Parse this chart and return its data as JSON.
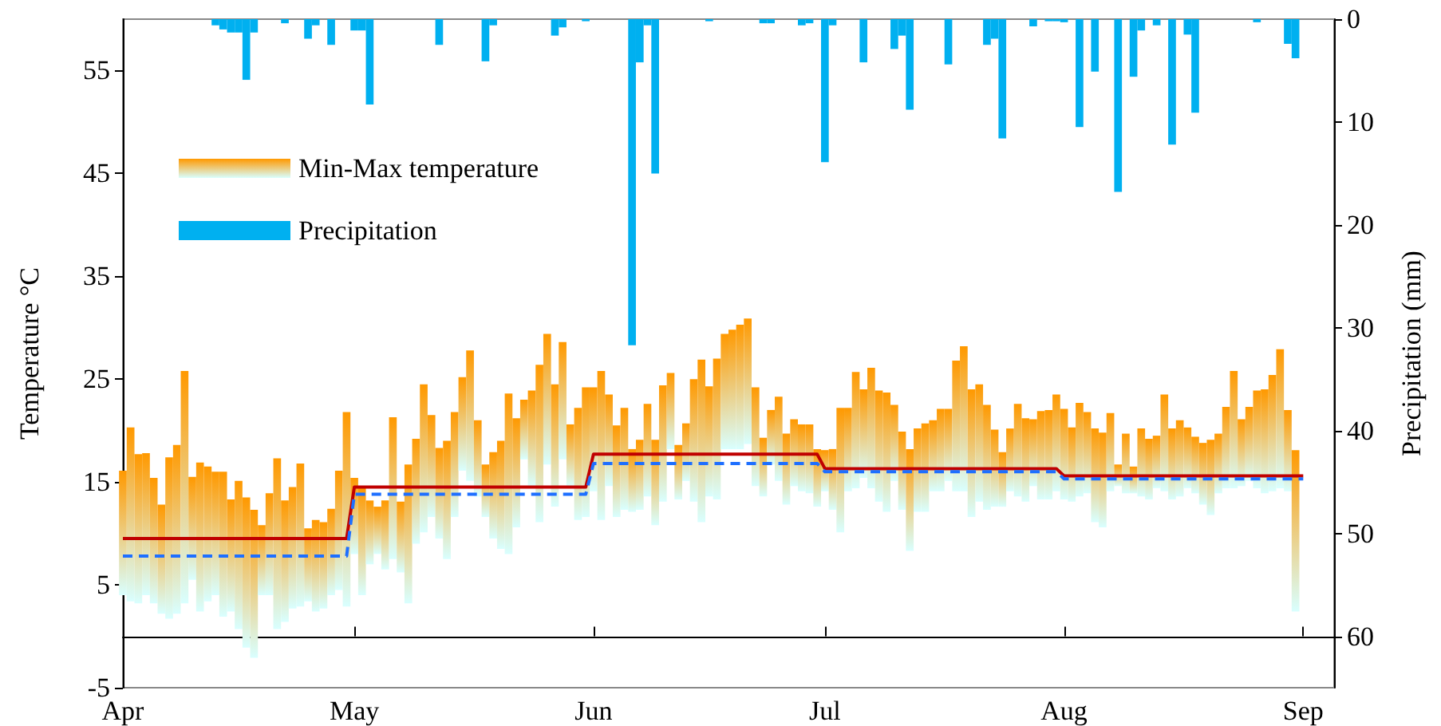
{
  "chart_data": {
    "type": "bar",
    "xlabel": null,
    "ylabel": "Temperature °C",
    "y2label": "Precipitation (mm)",
    "x": [
      "--04-01",
      "--04-02",
      "--04-03",
      "--04-04",
      "--04-05",
      "--04-06",
      "--04-07",
      "--04-08",
      "--04-09",
      "--04-10",
      "--04-11",
      "--04-12",
      "--04-13",
      "--04-14",
      "--04-15",
      "--04-16",
      "--04-17",
      "--04-18",
      "--04-19",
      "--04-20",
      "--04-21",
      "--04-22",
      "--04-23",
      "--04-24",
      "--04-25",
      "--04-26",
      "--04-27",
      "--04-28",
      "--04-29",
      "--04-30",
      "--05-01",
      "--05-02",
      "--05-03",
      "--05-04",
      "--05-05",
      "--05-06",
      "--05-07",
      "--05-08",
      "--05-09",
      "--05-10",
      "--05-11",
      "--05-12",
      "--05-13",
      "--05-14",
      "--05-15",
      "--05-16",
      "--05-17",
      "--05-18",
      "--05-19",
      "--05-20",
      "--05-21",
      "--05-22",
      "--05-23",
      "--05-24",
      "--05-25",
      "--05-26",
      "--05-27",
      "--05-28",
      "--05-29",
      "--05-30",
      "--05-31",
      "--06-01",
      "--06-02",
      "--06-03",
      "--06-04",
      "--06-05",
      "--06-06",
      "--06-07",
      "--06-08",
      "--06-09",
      "--06-10",
      "--06-11",
      "--06-12",
      "--06-13",
      "--06-14",
      "--06-15",
      "--06-16",
      "--06-17",
      "--06-18",
      "--06-19",
      "--06-20",
      "--06-21",
      "--06-22",
      "--06-23",
      "--06-24",
      "--06-25",
      "--06-26",
      "--06-27",
      "--06-28",
      "--06-29",
      "--06-30",
      "--07-01",
      "--07-02",
      "--07-03",
      "--07-04",
      "--07-05",
      "--07-06",
      "--07-07",
      "--07-08",
      "--07-09",
      "--07-10",
      "--07-11",
      "--07-12",
      "--07-13",
      "--07-14",
      "--07-15",
      "--07-16",
      "--07-17",
      "--07-18",
      "--07-19",
      "--07-20",
      "--07-21",
      "--07-22",
      "--07-23",
      "--07-24",
      "--07-25",
      "--07-26",
      "--07-27",
      "--07-28",
      "--07-29",
      "--07-30",
      "--07-31",
      "--08-01",
      "--08-02",
      "--08-03",
      "--08-04",
      "--08-05",
      "--08-06",
      "--08-07",
      "--08-08",
      "--08-09",
      "--08-10",
      "--08-11",
      "--08-12",
      "--08-13",
      "--08-14",
      "--08-15",
      "--08-16",
      "--08-17",
      "--08-18",
      "--08-19",
      "--08-20",
      "--08-21",
      "--08-22",
      "--08-23",
      "--08-24",
      "--08-25",
      "--08-26",
      "--08-27",
      "--08-28",
      "--08-29",
      "--08-30",
      "--08-31"
    ],
    "series": [
      {
        "name": "Min-Max temperature",
        "color": "#ff9900",
        "base": [
          4.0,
          3.4,
          3.2,
          4.0,
          3.2,
          2.2,
          1.7,
          2.2,
          3.2,
          5.5,
          2.4,
          3.4,
          4.0,
          1.9,
          2.4,
          0.7,
          -1.1,
          -2.1,
          4.0,
          4.0,
          0.7,
          1.4,
          2.7,
          2.9,
          3.4,
          2.4,
          2.7,
          4.0,
          4.5,
          2.9,
          8.0,
          4.0,
          7.0,
          8.0,
          6.5,
          7.5,
          6.2,
          3.2,
          9.0,
          10.1,
          11.6,
          9.5,
          7.5,
          11.6,
          16.1,
          15.1,
          13.6,
          11.6,
          9.5,
          8.5,
          8.0,
          10.6,
          17.2,
          14.6,
          11.1,
          16.7,
          12.6,
          17.2,
          14.6,
          11.3,
          11.6,
          14.1,
          11.3,
          14.6,
          11.6,
          12.3,
          12.1,
          12.3,
          13.6,
          10.8,
          13.1,
          18.2,
          13.3,
          15.1,
          13.1,
          11.1,
          13.6,
          13.3,
          18.2,
          18.2,
          18.2,
          18.7,
          14.6,
          13.6,
          16.7,
          15.1,
          12.8,
          14.6,
          14.1,
          13.9,
          12.6,
          14.1,
          12.3,
          10.1,
          14.1,
          14.4,
          15.4,
          14.4,
          13.1,
          12.1,
          15.1,
          12.3,
          8.3,
          12.1,
          12.1,
          14.1,
          14.1,
          15.1,
          14.1,
          14.1,
          11.6,
          13.1,
          12.3,
          12.6,
          12.6,
          14.1,
          13.6,
          13.1,
          14.6,
          13.3,
          13.3,
          14.1,
          13.3,
          13.1,
          13.6,
          13.9,
          11.1,
          10.6,
          14.1,
          14.6,
          13.9,
          13.9,
          13.6,
          13.3,
          14.4,
          14.1,
          13.3,
          13.6,
          14.4,
          13.9,
          12.8,
          11.8,
          13.9,
          14.4,
          14.4,
          14.6,
          15.1,
          14.4,
          13.9,
          14.1,
          14.4,
          14.1,
          2.4
        ],
        "values": [
          12.1,
          16.9,
          14.5,
          13.8,
          12.2,
          10.6,
          15.7,
          16.4,
          22.6,
          10.0,
          14.5,
          13.1,
          12.0,
          14.1,
          10.9,
          14.4,
          14.6,
          14.4,
          6.8,
          9.9,
          16.6,
          11.8,
          11.8,
          13.9,
          7.1,
          8.9,
          8.4,
          8.4,
          11.6,
          18.9,
          7.4,
          10.4,
          6.2,
          4.6,
          6.7,
          13.8,
          6.9,
          13.5,
          10.2,
          14.4,
          9.9,
          8.8,
          11.5,
          10.2,
          9.1,
          12.7,
          7.4,
          5.1,
          8.4,
          10.5,
          15.6,
          10.6,
          5.8,
          9.3,
          15.3,
          12.7,
          11.9,
          11.4,
          6.0,
          10.9,
          12.6,
          10.1,
          14.5,
          8.9,
          8.9,
          9.9,
          6.1,
          6.8,
          9.0,
          8.3,
          11.3,
          7.4,
          5.3,
          5.6,
          11.9,
          15.8,
          10.7,
          13.7,
          11.2,
          11.6,
          12.1,
          12.2,
          9.6,
          5.7,
          5.3,
          8.2,
          6.9,
          6.5,
          6.5,
          6.7,
          5.6,
          4.0,
          5.9,
          12.1,
          8.1,
          11.3,
          8.6,
          11.7,
          10.8,
          11.6,
          7.4,
          7.6,
          9.9,
          8.1,
          8.6,
          6.9,
          8.0,
          7.0,
          12.7,
          14.1,
          12.4,
          11.4,
          10.2,
          7.5,
          5.3,
          6.1,
          9.0,
          8.1,
          6.5,
          8.6,
          8.7,
          9.4,
          8.8,
          7.2,
          9.1,
          7.9,
          9.1,
          9.2,
          7.6,
          2.1,
          5.8,
          2.6,
          6.6,
          5.9,
          5.1,
          9.4,
          6.9,
          7.4,
          5.9,
          5.5,
          6.0,
          7.3,
          5.8,
          7.9,
          11.4,
          6.5,
          7.2,
          9.5,
          10.1,
          11.3,
          13.5,
          7.9,
          15.7
        ]
      },
      {
        "name": "Precipitation",
        "axis": "y2",
        "color": "#00b0f0",
        "values": [
          0,
          0,
          0,
          0,
          0,
          0,
          0,
          0,
          0,
          0,
          0,
          0,
          0.6,
          1.0,
          1.3,
          1.3,
          5.9,
          1.3,
          0,
          0,
          0,
          0.4,
          0,
          0,
          1.9,
          0.6,
          0,
          2.5,
          0,
          0,
          1.1,
          1.1,
          8.3,
          0,
          0,
          0,
          0,
          0,
          0,
          0,
          0,
          2.5,
          0,
          0,
          0,
          0,
          0,
          4.1,
          0.6,
          0,
          0,
          0,
          0,
          0,
          0,
          0,
          1.6,
          0.8,
          0,
          0,
          0.2,
          0,
          0,
          0,
          0,
          0,
          31.7,
          4.2,
          0.6,
          15.0,
          0,
          0,
          0,
          0,
          0,
          0,
          0.2,
          0,
          0,
          0,
          0,
          0,
          0,
          0.4,
          0.4,
          0,
          0,
          0,
          0.6,
          0.4,
          0,
          13.9,
          0.6,
          0,
          0,
          0,
          4.2,
          0,
          0,
          0,
          2.9,
          1.6,
          8.8,
          0,
          0,
          0,
          0,
          4.4,
          0,
          0,
          0,
          0,
          2.5,
          1.9,
          11.6,
          0,
          0,
          0,
          0.7,
          0,
          0.2,
          0.2,
          0.3,
          0,
          10.5,
          0,
          5.1,
          0,
          0,
          16.8,
          0,
          5.6,
          1.1,
          0,
          0.6,
          0,
          12.2,
          0,
          1.5,
          9.1,
          0,
          0,
          0,
          0,
          0,
          0,
          0,
          0.3,
          0,
          0,
          0,
          2.4,
          3.8
        ]
      },
      {
        "type": "line",
        "color": "#c00000",
        "line_style": "solid",
        "x": [
          "--04-01",
          "--04-30",
          "--05-01",
          "--05-31",
          "--06-01",
          "--06-30",
          "--07-01",
          "--07-31",
          "--08-01",
          "--09-01"
        ],
        "values": [
          9.5,
          9.5,
          14.5,
          14.5,
          17.7,
          17.7,
          16.3,
          16.3,
          15.6,
          15.6
        ]
      },
      {
        "type": "line",
        "color": "#1e6fff",
        "line_style": "dashed",
        "x": [
          "--04-01",
          "--04-30",
          "--05-01",
          "--05-31",
          "--06-01",
          "--06-30",
          "--07-01",
          "--07-31",
          "--08-01",
          "--09-01"
        ],
        "values": [
          7.8,
          7.8,
          13.8,
          13.8,
          16.8,
          16.8,
          16.0,
          16.0,
          15.3,
          15.3
        ]
      }
    ],
    "xlim": [
      "--04-01",
      "--09-05"
    ],
    "xticks": [
      {
        "value": "--04-01",
        "label": "Apr"
      },
      {
        "value": "--05-01",
        "label": "May"
      },
      {
        "value": "--06-01",
        "label": "Jun"
      },
      {
        "value": "--07-01",
        "label": "Jul"
      },
      {
        "value": "--08-01",
        "label": "Aug"
      },
      {
        "value": "--09-01",
        "label": "Sep"
      }
    ],
    "ylim": [
      -5,
      60
    ],
    "yticks": [
      -5,
      5,
      15,
      25,
      35,
      45,
      55
    ],
    "y2lim": [
      65,
      0
    ],
    "y2ticks": [
      0,
      10,
      20,
      30,
      40,
      50,
      60
    ],
    "marker": "none",
    "legend": "top left"
  }
}
